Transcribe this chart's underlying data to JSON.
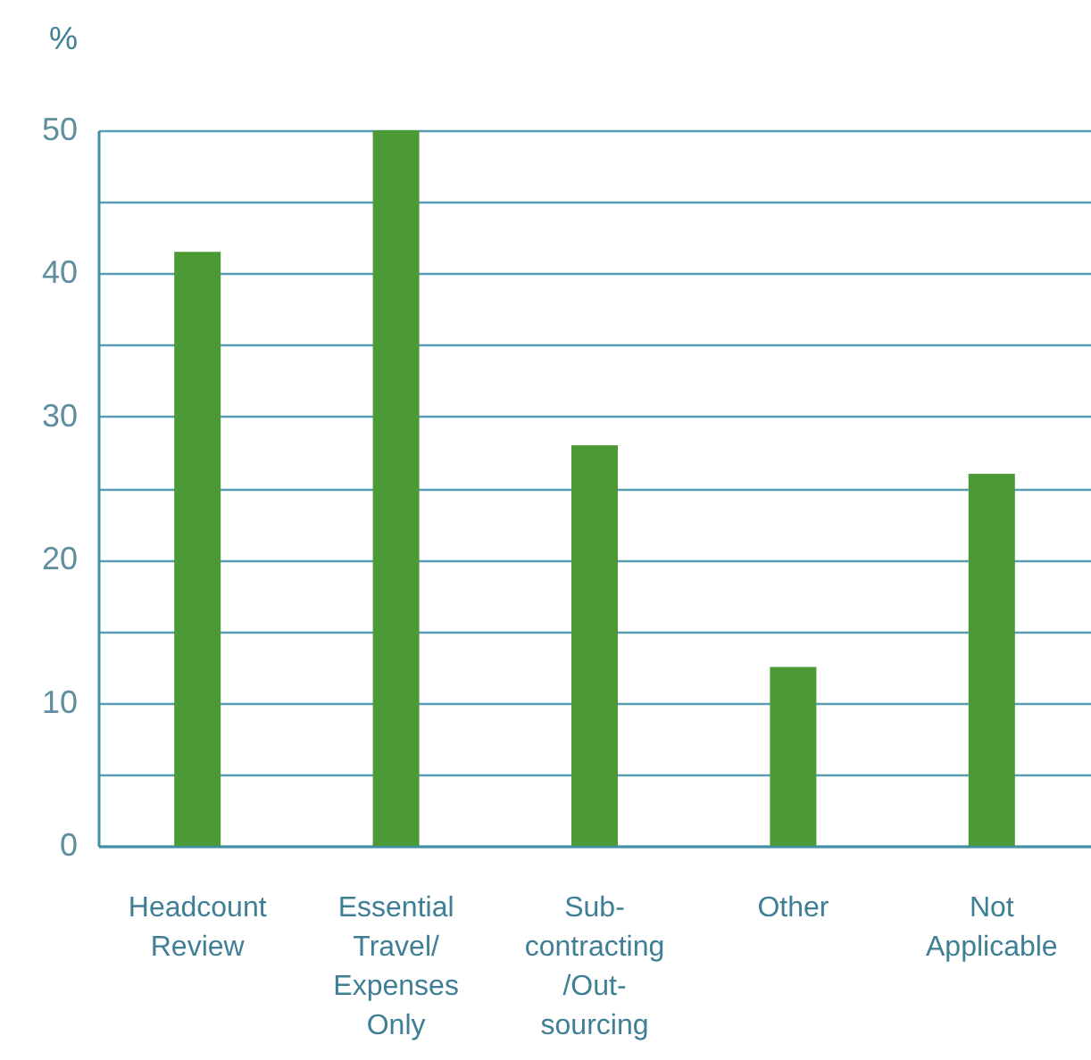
{
  "chart_data": {
    "type": "bar",
    "ylabel": "%",
    "categories": [
      "Headcount\nReview",
      "Essential\nTravel/\nExpenses\nOnly",
      "Sub-\ncontracting\n/Out-\nsourcing",
      "Other",
      "Not\nApplicable"
    ],
    "values": [
      41.5,
      50,
      28,
      12.5,
      26
    ],
    "color": "#4c9a35",
    "ylim": [
      0,
      50
    ],
    "yticks": [
      0,
      {
        "value": 5,
        "label": null
      },
      10,
      {
        "value": 15,
        "label": null
      },
      20,
      {
        "value": 25,
        "label": null
      },
      30,
      {
        "value": 35,
        "label": null
      },
      40,
      {
        "value": 45,
        "label": null
      },
      50
    ],
    "grid": true
  }
}
